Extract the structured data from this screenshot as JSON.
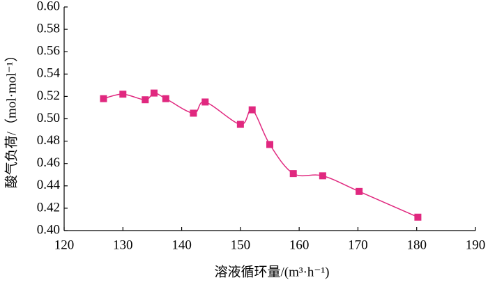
{
  "chart_data": {
    "type": "line",
    "x_label": "溶液循环量/(m³·h⁻¹)",
    "y_label": "酸气负荷/（mol·mol⁻¹）",
    "x": [
      126.7,
      130,
      133.8,
      135.3,
      137.3,
      142,
      144,
      150,
      152,
      155,
      159,
      164,
      170.2,
      180.2
    ],
    "series": [
      {
        "color": "#e0287f",
        "values": [
          0.518,
          0.522,
          0.517,
          0.523,
          0.518,
          0.505,
          0.515,
          0.495,
          0.508,
          0.477,
          0.451,
          0.449,
          0.435,
          0.412
        ]
      }
    ],
    "xlim": [
      120,
      190
    ],
    "xticks": [
      120,
      130,
      140,
      150,
      160,
      170,
      180,
      190
    ],
    "ylim": [
      0.4,
      0.6
    ],
    "yticks": [
      {
        "value": 0.4,
        "label": "0.40"
      },
      {
        "value": 0.42,
        "label": "0.42"
      },
      {
        "value": 0.44,
        "label": "0.44"
      },
      {
        "value": 0.46,
        "label": "0.46"
      },
      {
        "value": 0.48,
        "label": "0.48"
      },
      {
        "value": 0.5,
        "label": "0.50"
      },
      {
        "value": 0.52,
        "label": "0.52"
      },
      {
        "value": 0.54,
        "label": "0.54"
      },
      {
        "value": 0.56,
        "label": "0.56"
      },
      {
        "value": 0.58,
        "label": "0.58"
      },
      {
        "value": 0.6,
        "label": "0.60"
      }
    ],
    "smooth": true,
    "marker": "square"
  }
}
